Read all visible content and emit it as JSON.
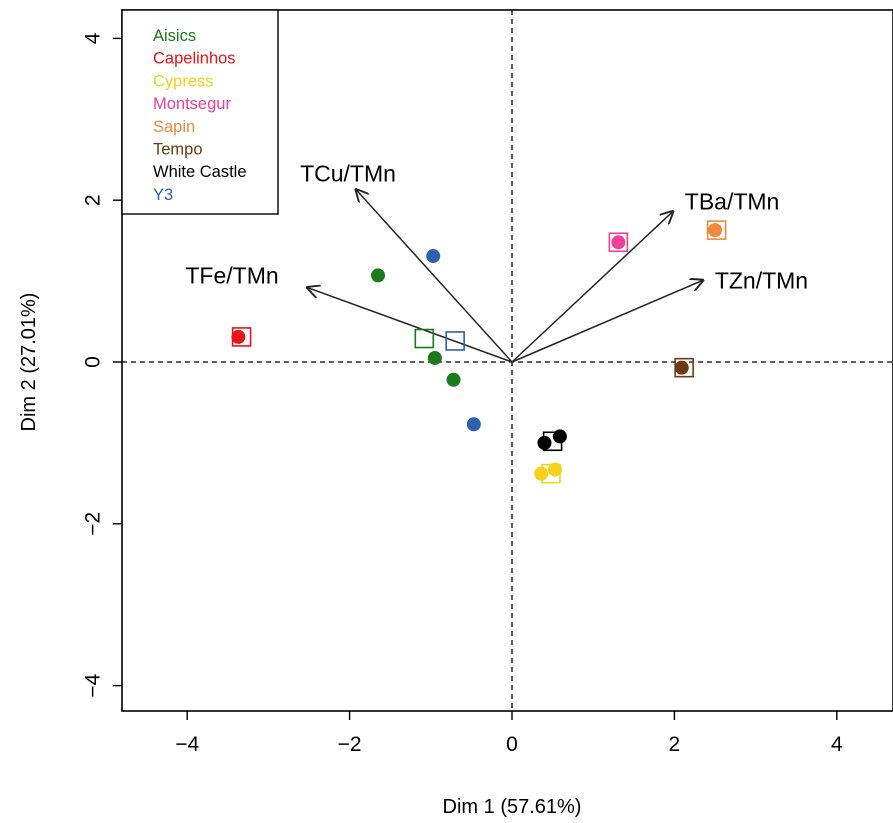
{
  "chart_data": {
    "type": "scatter",
    "title": "",
    "xlabel": "Dim 1 (57.61%)",
    "ylabel": "Dim 2 (27.01%)",
    "xlim": [
      -4.85,
      4.85
    ],
    "ylim": [
      -4.4,
      4.4
    ],
    "x_ticks": [
      -4,
      -2,
      0,
      2,
      4
    ],
    "y_ticks": [
      -4,
      -2,
      0,
      2,
      4
    ],
    "tick_labels": {
      "x": [
        "−4",
        "−2",
        "0",
        "2",
        "4"
      ],
      "y": [
        "−4",
        "−2",
        "0",
        "2",
        "4"
      ]
    },
    "reference_lines": {
      "x": 0,
      "y": 0,
      "style": "dashed"
    },
    "grid": false,
    "legend_position": "top-left",
    "legend": [
      {
        "label": "Aisics",
        "color": "#1b7a1b"
      },
      {
        "label": "Capelinhos",
        "color": "#e8141c"
      },
      {
        "label": "Cypress",
        "color": "#f5d31a"
      },
      {
        "label": "Montsegur",
        "color": "#ef3f9a"
      },
      {
        "label": "Sapin",
        "color": "#ee8a3a"
      },
      {
        "label": "Tempo",
        "color": "#6b3b12"
      },
      {
        "label": "White Castle",
        "color": "#000000"
      },
      {
        "label": "Y3",
        "color": "#2f5fae"
      }
    ],
    "vectors": [
      {
        "label": "TCu/TMn",
        "x": -1.92,
        "y": 2.13
      },
      {
        "label": "TFe/TMn",
        "x": -2.52,
        "y": 0.92
      },
      {
        "label": "TBa/TMn",
        "x": 1.98,
        "y": 1.86
      },
      {
        "label": "TZn/TMn",
        "x": 2.35,
        "y": 1.01
      }
    ],
    "points": [
      {
        "series": "Aisics",
        "x": -1.65,
        "y": 1.07
      },
      {
        "series": "Aisics",
        "x": -0.95,
        "y": 0.05
      },
      {
        "series": "Aisics",
        "x": -0.72,
        "y": -0.22
      },
      {
        "series": "Capelinhos",
        "x": -3.37,
        "y": 0.31
      },
      {
        "series": "Cypress",
        "x": 0.36,
        "y": -1.38
      },
      {
        "series": "Cypress",
        "x": 0.53,
        "y": -1.33
      },
      {
        "series": "Montsegur",
        "x": 1.31,
        "y": 1.48
      },
      {
        "series": "Sapin",
        "x": 2.5,
        "y": 1.63
      },
      {
        "series": "Tempo",
        "x": 2.09,
        "y": -0.07
      },
      {
        "series": "White Castle",
        "x": 0.4,
        "y": -1.0
      },
      {
        "series": "White Castle",
        "x": 0.59,
        "y": -0.92
      },
      {
        "series": "Y3",
        "x": -0.97,
        "y": 1.31
      },
      {
        "series": "Y3",
        "x": -0.47,
        "y": -0.77
      }
    ],
    "centroids": [
      {
        "series": "Aisics",
        "x": -1.08,
        "y": 0.29
      },
      {
        "series": "Capelinhos",
        "x": -3.33,
        "y": 0.31
      },
      {
        "series": "Cypress",
        "x": 0.48,
        "y": -1.38
      },
      {
        "series": "Montsegur",
        "x": 1.31,
        "y": 1.48
      },
      {
        "series": "Sapin",
        "x": 2.52,
        "y": 1.63
      },
      {
        "series": "Tempo",
        "x": 2.12,
        "y": -0.07
      },
      {
        "series": "White Castle",
        "x": 0.5,
        "y": -0.98
      },
      {
        "series": "Y3",
        "x": -0.7,
        "y": 0.26
      }
    ]
  }
}
